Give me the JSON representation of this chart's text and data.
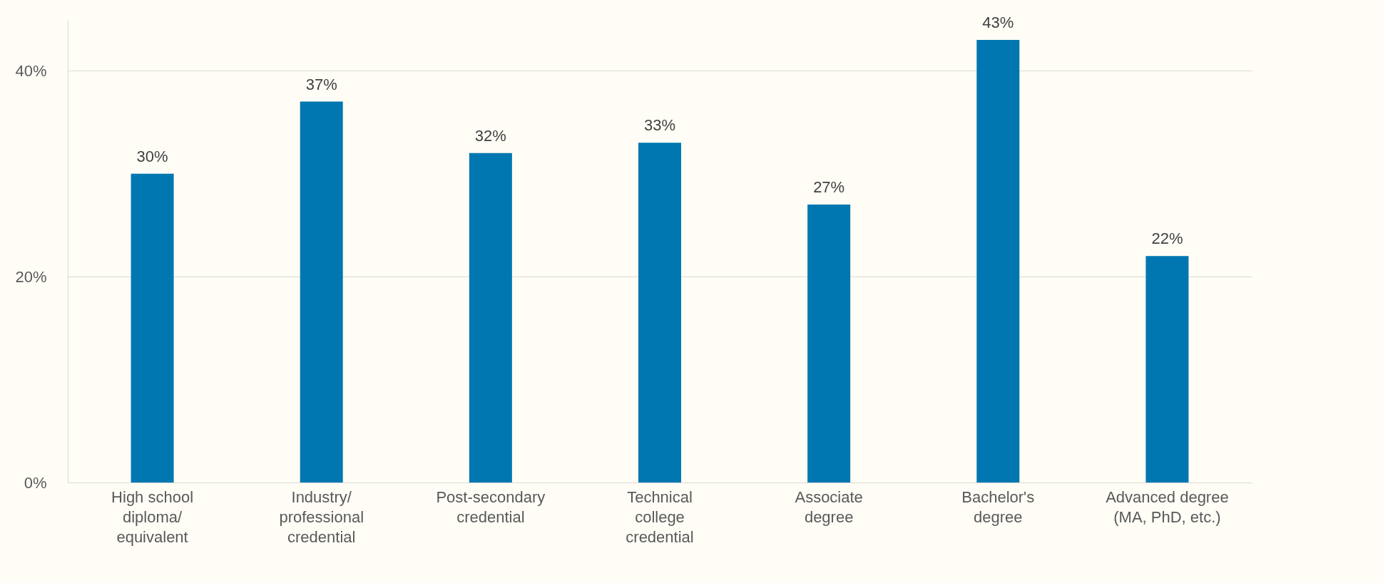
{
  "chart_data": {
    "type": "bar",
    "categories": [
      "High school diploma/ equivalent",
      "Industry/ professional credential",
      "Post-secondary credential",
      "Technical college credential",
      "Associate degree",
      "Bachelor's degree",
      "Advanced degree (MA, PhD, etc.)"
    ],
    "values": [
      30,
      37,
      32,
      33,
      27,
      43,
      22
    ],
    "color": "#0077b0",
    "value_labels": [
      "30%",
      "37%",
      "32%",
      "33%",
      "27%",
      "43%",
      "22%"
    ],
    "ylim": [
      0,
      45
    ],
    "yticks": [
      {
        "value": 0,
        "label": "0%"
      },
      {
        "value": 20,
        "label": "20%"
      },
      {
        "value": 40,
        "label": "40%"
      }
    ],
    "grid": "y"
  }
}
